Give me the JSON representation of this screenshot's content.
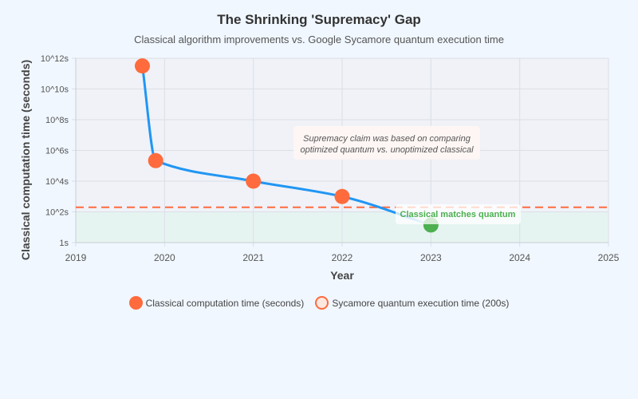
{
  "chart_data": {
    "type": "line",
    "title": "The Shrinking 'Supremacy' Gap",
    "subtitle": "Classical algorithm improvements vs. Google Sycamore quantum execution time",
    "xlabel": "Year",
    "ylabel": "Classical computation time (seconds)",
    "xlim": [
      2019,
      2025
    ],
    "ylim": [
      1,
      1000000000000.0
    ],
    "y_scale": "log",
    "x_ticks": [
      "2019",
      "2020",
      "2021",
      "2022",
      "2023",
      "2024",
      "2025"
    ],
    "y_ticks": [
      "1s",
      "10^2s",
      "10^4s",
      "10^6s",
      "10^8s",
      "10^10s",
      "10^12s"
    ],
    "grid": true,
    "series": [
      {
        "name": "Classical computation time (seconds)",
        "color": "#ff6b3d",
        "line_color": "#2196f3",
        "x": [
          2019.75,
          2019.9,
          2021.0,
          2022.0,
          2023.0
        ],
        "y": [
          315000000000.0,
          216000,
          10000,
          1000,
          14
        ],
        "point_colors": [
          "#ff6b3d",
          "#ff6b3d",
          "#ff6b3d",
          "#ff6b3d",
          "#4caf50"
        ]
      },
      {
        "name": "Sycamore quantum execution time (200s)",
        "color": "#ff6b3d",
        "y": 200,
        "style": "dashed"
      }
    ],
    "shaded_region": {
      "y_from": 1,
      "y_to": 100,
      "color": "#e6f4f1"
    },
    "annotations": [
      {
        "text": "Supremacy claim was based on comparing optimized quantum vs. unoptimized classical"
      },
      {
        "text": "Classical matches quantum",
        "color": "#4caf50"
      }
    ],
    "legend_position": "bottom"
  }
}
